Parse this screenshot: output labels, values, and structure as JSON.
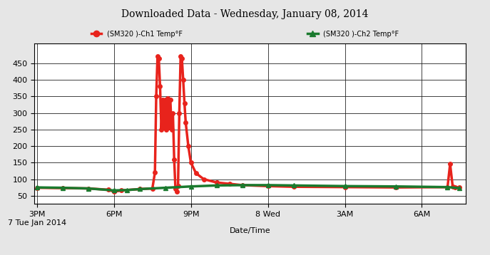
{
  "chart_data": {
    "type": "line",
    "title": "Downloaded Data - Wednesday, January 08, 2014",
    "x_label": "Date/Time",
    "xlim": [
      -0.1,
      16.7
    ],
    "xticks": [
      {
        "value": 0,
        "label": "3PM\n7 Tue Jan 2014"
      },
      {
        "value": 3,
        "label": "6PM"
      },
      {
        "value": 6,
        "label": "9PM"
      },
      {
        "value": 9,
        "label": "8 Wed"
      },
      {
        "value": 12,
        "label": "3AM"
      },
      {
        "value": 15,
        "label": "6AM"
      }
    ],
    "ylim": [
      25,
      510
    ],
    "yticks": [
      50,
      100,
      150,
      200,
      250,
      300,
      350,
      400,
      450
    ],
    "grid": true,
    "legend": "upper center",
    "series": [
      {
        "name": "(SM320 )-Ch1 Temp°F",
        "color": "#e8231c",
        "marker": "circle",
        "line_style": "solid",
        "x": [
          0,
          1,
          2,
          2.8,
          3.0,
          3.3,
          4.0,
          4.5,
          4.6,
          4.65,
          4.7,
          4.75,
          4.8,
          4.85,
          4.9,
          4.95,
          5.0,
          5.05,
          5.1,
          5.15,
          5.2,
          5.25,
          5.3,
          5.35,
          5.4,
          5.45,
          5.5,
          5.55,
          5.6,
          5.65,
          5.7,
          5.75,
          5.8,
          5.9,
          6.0,
          6.2,
          6.5,
          7.0,
          7.5,
          8,
          9,
          10,
          12,
          14,
          16,
          16.1,
          16.2,
          16.3,
          16.45
        ],
        "values": [
          74,
          73,
          72,
          68,
          62,
          66,
          70,
          72,
          120,
          350,
          470,
          465,
          380,
          250,
          340,
          255,
          340,
          250,
          345,
          255,
          340,
          250,
          300,
          160,
          70,
          62,
          80,
          300,
          470,
          465,
          400,
          330,
          270,
          200,
          150,
          118,
          100,
          90,
          86,
          82,
          79,
          77,
          76,
          75,
          76,
          146,
          78,
          76,
          75
        ]
      },
      {
        "name": "(SM320 )-Ch2 Temp°F",
        "color": "#1a7a2e",
        "marker": "triangle",
        "line_style": "solid",
        "x": [
          0,
          1,
          2,
          3,
          3.5,
          4,
          5,
          6,
          7,
          8,
          9,
          10,
          12,
          14,
          16,
          16.45
        ],
        "values": [
          75,
          74,
          72,
          66,
          67,
          70,
          74,
          78,
          81,
          82,
          82,
          81,
          79,
          78,
          76,
          73
        ]
      }
    ]
  }
}
